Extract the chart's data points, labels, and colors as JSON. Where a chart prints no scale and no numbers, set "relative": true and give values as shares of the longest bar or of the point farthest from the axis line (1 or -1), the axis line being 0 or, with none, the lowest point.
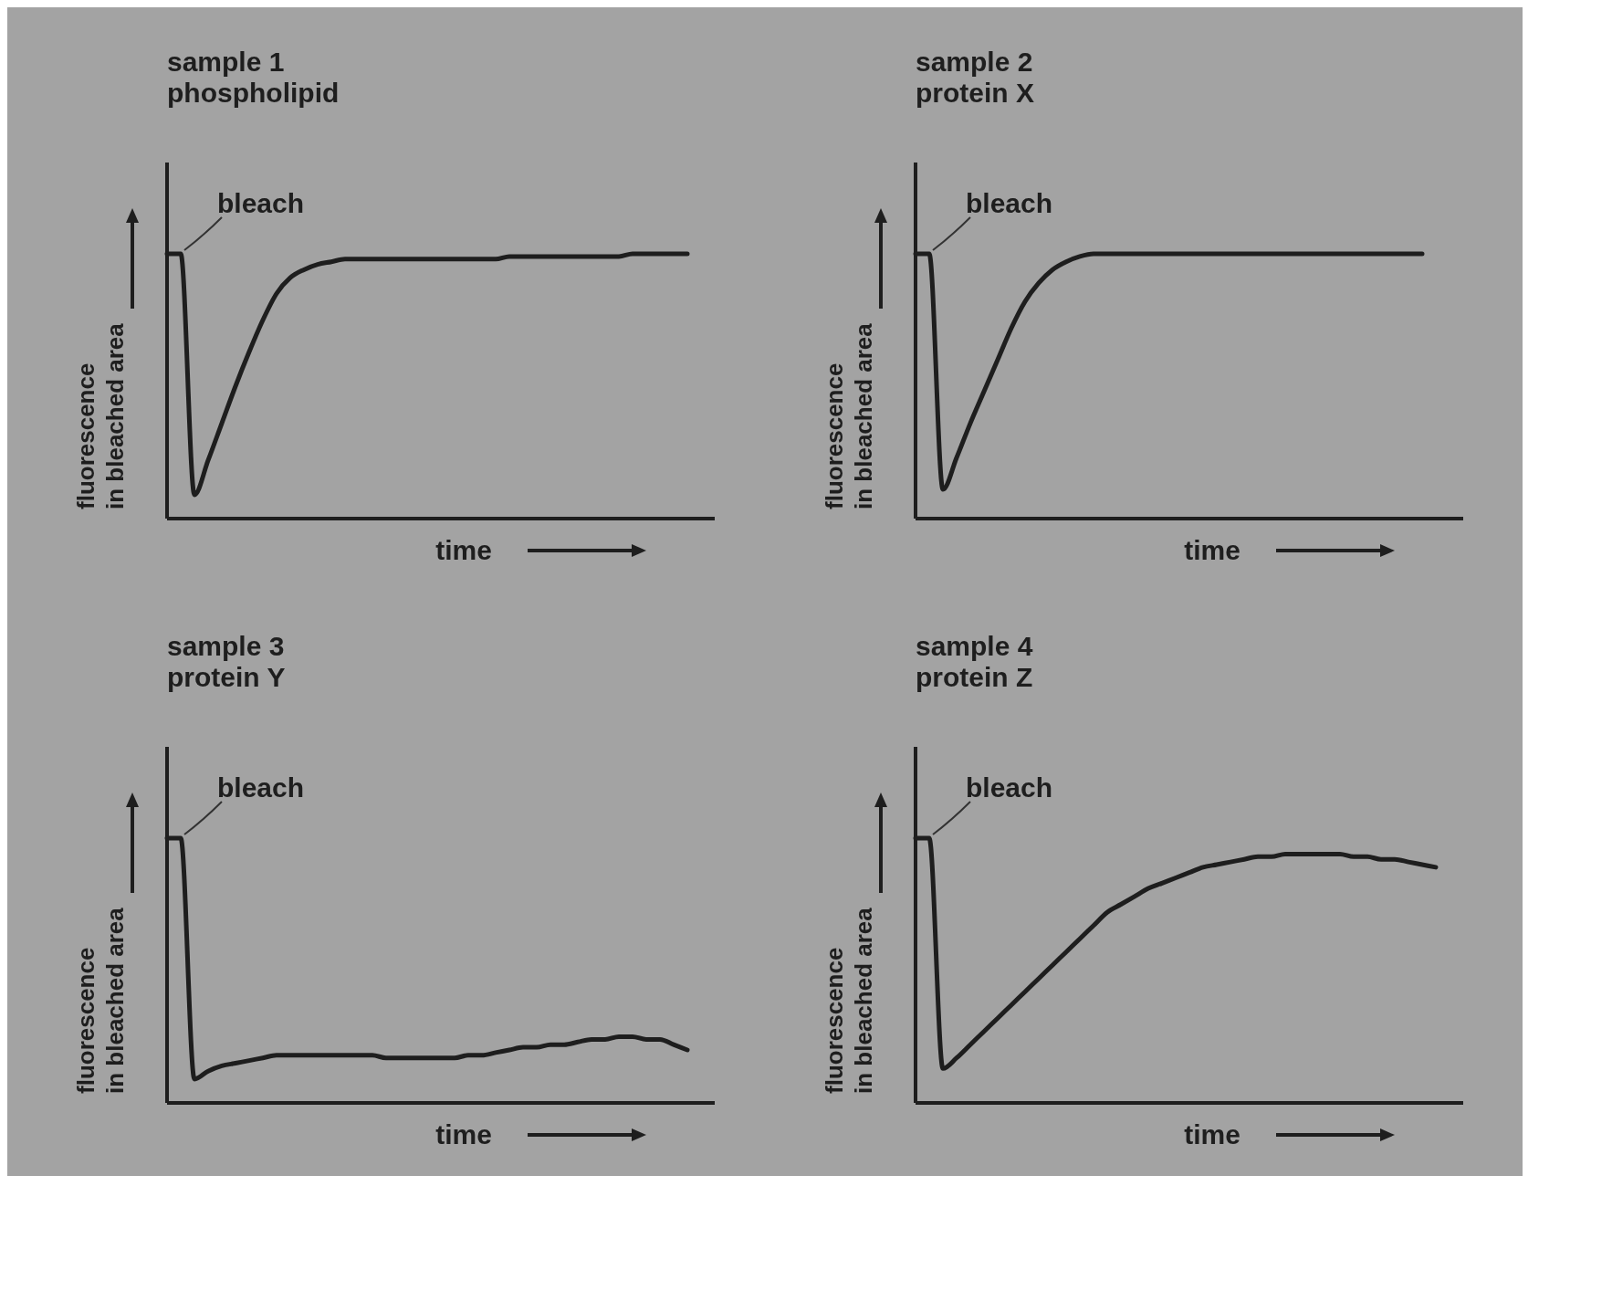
{
  "chart_data": [
    {
      "type": "line",
      "title": "sample 1",
      "subtitle": "phospholipid",
      "xlabel": "time",
      "ylabel": "fluorescence in bleached area",
      "annotations": [
        "bleach"
      ],
      "relative": true,
      "categories": [
        null,
        null,
        null,
        null,
        null,
        null,
        null,
        null,
        null,
        null,
        null,
        null,
        null,
        null,
        null,
        null,
        null,
        null,
        null,
        null,
        null,
        null,
        null,
        null,
        null,
        null,
        null,
        null,
        null,
        null,
        null,
        null,
        null,
        null,
        null,
        null,
        null,
        null,
        null,
        null
      ],
      "series": [
        {
          "color": "#1e1e1e",
          "values": [
            1.0,
            1.0,
            0.09,
            0.22,
            0.36,
            0.5,
            0.63,
            0.75,
            0.85,
            0.91,
            0.94,
            0.96,
            0.97,
            0.98,
            0.98,
            0.98,
            0.98,
            0.98,
            0.98,
            0.98,
            0.98,
            0.98,
            0.98,
            0.98,
            0.98,
            0.99,
            0.99,
            0.99,
            0.99,
            0.99,
            0.99,
            0.99,
            0.99,
            0.99,
            1.0,
            1.0,
            1.0,
            1.0,
            1.0,
            null
          ]
        }
      ]
    },
    {
      "type": "line",
      "title": "sample 2",
      "subtitle": "protein X",
      "xlabel": "time",
      "ylabel": "fluorescence in bleached area",
      "annotations": [
        "bleach"
      ],
      "relative": true,
      "categories": [
        null,
        null,
        null,
        null,
        null,
        null,
        null,
        null,
        null,
        null,
        null,
        null,
        null,
        null,
        null,
        null,
        null,
        null,
        null,
        null,
        null,
        null,
        null,
        null,
        null,
        null,
        null,
        null,
        null,
        null,
        null,
        null,
        null,
        null,
        null,
        null,
        null,
        null,
        null,
        null
      ],
      "series": [
        {
          "color": "#1e1e1e",
          "values": [
            1.0,
            1.0,
            0.11,
            0.23,
            0.36,
            0.48,
            0.6,
            0.72,
            0.82,
            0.89,
            0.94,
            0.97,
            0.99,
            1.0,
            1.0,
            1.0,
            1.0,
            1.0,
            1.0,
            1.0,
            1.0,
            1.0,
            1.0,
            1.0,
            1.0,
            1.0,
            1.0,
            1.0,
            1.0,
            1.0,
            1.0,
            1.0,
            1.0,
            1.0,
            1.0,
            1.0,
            1.0,
            1.0,
            null,
            null
          ]
        }
      ]
    },
    {
      "type": "line",
      "title": "sample 3",
      "subtitle": "protein Y",
      "xlabel": "time",
      "ylabel": "fluorescence in bleached area",
      "annotations": [
        "bleach"
      ],
      "relative": true,
      "categories": [
        null,
        null,
        null,
        null,
        null,
        null,
        null,
        null,
        null,
        null,
        null,
        null,
        null,
        null,
        null,
        null,
        null,
        null,
        null,
        null,
        null,
        null,
        null,
        null,
        null,
        null,
        null,
        null,
        null,
        null,
        null,
        null,
        null,
        null,
        null,
        null,
        null,
        null,
        null,
        null
      ],
      "series": [
        {
          "color": "#1e1e1e",
          "values": [
            1.0,
            1.0,
            0.09,
            0.12,
            0.14,
            0.15,
            0.16,
            0.17,
            0.18,
            0.18,
            0.18,
            0.18,
            0.18,
            0.18,
            0.18,
            0.18,
            0.17,
            0.17,
            0.17,
            0.17,
            0.17,
            0.17,
            0.18,
            0.18,
            0.19,
            0.2,
            0.21,
            0.21,
            0.22,
            0.22,
            0.23,
            0.24,
            0.24,
            0.25,
            0.25,
            0.24,
            0.24,
            0.22,
            0.2,
            null
          ]
        }
      ]
    },
    {
      "type": "line",
      "title": "sample 4",
      "subtitle": "protein Z",
      "xlabel": "time",
      "ylabel": "fluorescence in bleached area",
      "annotations": [
        "bleach"
      ],
      "relative": true,
      "categories": [
        null,
        null,
        null,
        null,
        null,
        null,
        null,
        null,
        null,
        null,
        null,
        null,
        null,
        null,
        null,
        null,
        null,
        null,
        null,
        null,
        null,
        null,
        null,
        null,
        null,
        null,
        null,
        null,
        null,
        null,
        null,
        null,
        null,
        null,
        null,
        null,
        null,
        null,
        null,
        null
      ],
      "series": [
        {
          "color": "#1e1e1e",
          "values": [
            1.0,
            1.0,
            0.13,
            0.17,
            0.22,
            0.27,
            0.32,
            0.37,
            0.42,
            0.47,
            0.52,
            0.57,
            0.62,
            0.67,
            0.72,
            0.75,
            0.78,
            0.81,
            0.83,
            0.85,
            0.87,
            0.89,
            0.9,
            0.91,
            0.92,
            0.93,
            0.93,
            0.94,
            0.94,
            0.94,
            0.94,
            0.94,
            0.93,
            0.93,
            0.92,
            0.92,
            0.91,
            0.9,
            0.89,
            null
          ]
        }
      ]
    }
  ]
}
